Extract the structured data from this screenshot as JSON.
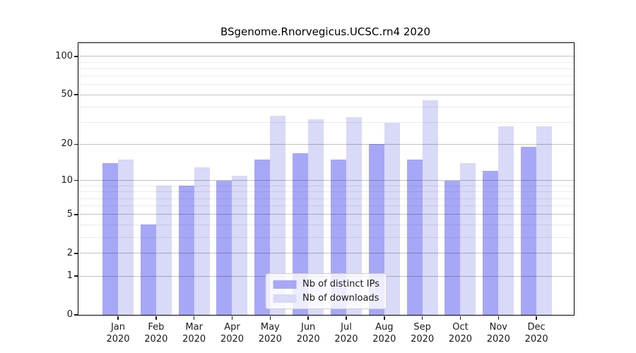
{
  "chart_data": {
    "type": "bar",
    "title": "BSgenome.Rnorvegicus.UCSC.rn4 2020",
    "categories": [
      "Jan",
      "Feb",
      "Mar",
      "Apr",
      "May",
      "Jun",
      "Jul",
      "Aug",
      "Sep",
      "Oct",
      "Nov",
      "Dec"
    ],
    "xtick_line2": "2020",
    "series": [
      {
        "name": "Nb of distinct IPs",
        "color": "#a7a7f7",
        "values": [
          14,
          4,
          9,
          10,
          15,
          17,
          15,
          20,
          15,
          10,
          12,
          19
        ]
      },
      {
        "name": "Nb of downloads",
        "color": "#d9d9f8",
        "values": [
          15,
          9,
          13,
          11,
          34,
          32,
          33,
          30,
          45,
          14,
          28,
          28
        ]
      }
    ],
    "yscale": "log1p",
    "ylim": [
      0,
      127
    ],
    "yticks_major": [
      0,
      1,
      2,
      5,
      10,
      20,
      50,
      100
    ],
    "yticks_minor": [
      3,
      4,
      6,
      7,
      8,
      9,
      30,
      40,
      60,
      70,
      80,
      90
    ],
    "grid": true,
    "legend_position": "lower center"
  }
}
